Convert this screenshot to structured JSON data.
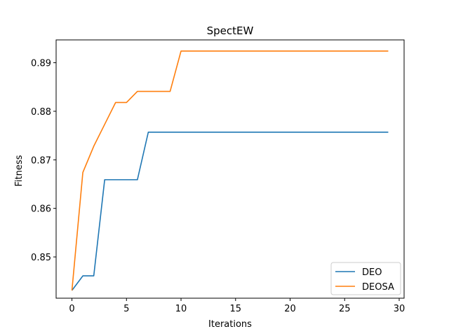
{
  "chart_data": {
    "type": "line",
    "title": "SpectEW",
    "xlabel": "Iterations",
    "ylabel": "Fitness",
    "xlim": [
      -1.45,
      30.45
    ],
    "ylim": [
      0.8415,
      0.8947
    ],
    "x_ticks": [
      0,
      5,
      10,
      15,
      20,
      25,
      30
    ],
    "y_ticks": [
      0.85,
      0.86,
      0.87,
      0.88,
      0.89
    ],
    "x_tick_labels": [
      "0",
      "5",
      "10",
      "15",
      "20",
      "25",
      "30"
    ],
    "y_tick_labels": [
      "0.85",
      "0.86",
      "0.87",
      "0.88",
      "0.89"
    ],
    "grid": false,
    "legend_position": "lower-right",
    "x": [
      0,
      1,
      2,
      3,
      4,
      5,
      6,
      7,
      8,
      9,
      10,
      11,
      12,
      13,
      14,
      15,
      16,
      17,
      18,
      19,
      20,
      21,
      22,
      23,
      24,
      25,
      26,
      27,
      28,
      29
    ],
    "series": [
      {
        "name": "DEO",
        "color": "#1f77b4",
        "values": [
          0.8431,
          0.8461,
          0.8461,
          0.8659,
          0.8659,
          0.8659,
          0.8659,
          0.8757,
          0.8757,
          0.8757,
          0.8757,
          0.8757,
          0.8757,
          0.8757,
          0.8757,
          0.8757,
          0.8757,
          0.8757,
          0.8757,
          0.8757,
          0.8757,
          0.8757,
          0.8757,
          0.8757,
          0.8757,
          0.8757,
          0.8757,
          0.8757,
          0.8757,
          0.8757
        ]
      },
      {
        "name": "DEOSA",
        "color": "#ff7f0e",
        "values": [
          0.8431,
          0.8674,
          0.8728,
          0.8773,
          0.8818,
          0.8818,
          0.8841,
          0.8841,
          0.8841,
          0.8841,
          0.8924,
          0.8924,
          0.8924,
          0.8924,
          0.8924,
          0.8924,
          0.8924,
          0.8924,
          0.8924,
          0.8924,
          0.8924,
          0.8924,
          0.8924,
          0.8924,
          0.8924,
          0.8924,
          0.8924,
          0.8924,
          0.8924,
          0.8924
        ]
      }
    ]
  }
}
